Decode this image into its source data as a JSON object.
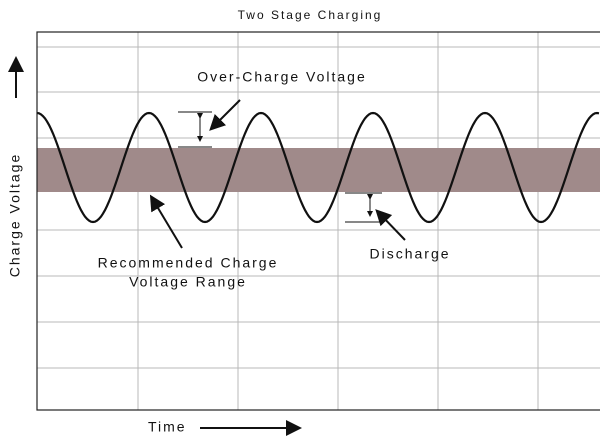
{
  "title": "Two Stage Charging",
  "y_axis_label": "Charge Voltage",
  "x_axis_label": "Time",
  "annotations": [
    "Over-Charge Voltage",
    "Recommended Charge",
    "Voltage Range",
    "Discharge"
  ]
}
